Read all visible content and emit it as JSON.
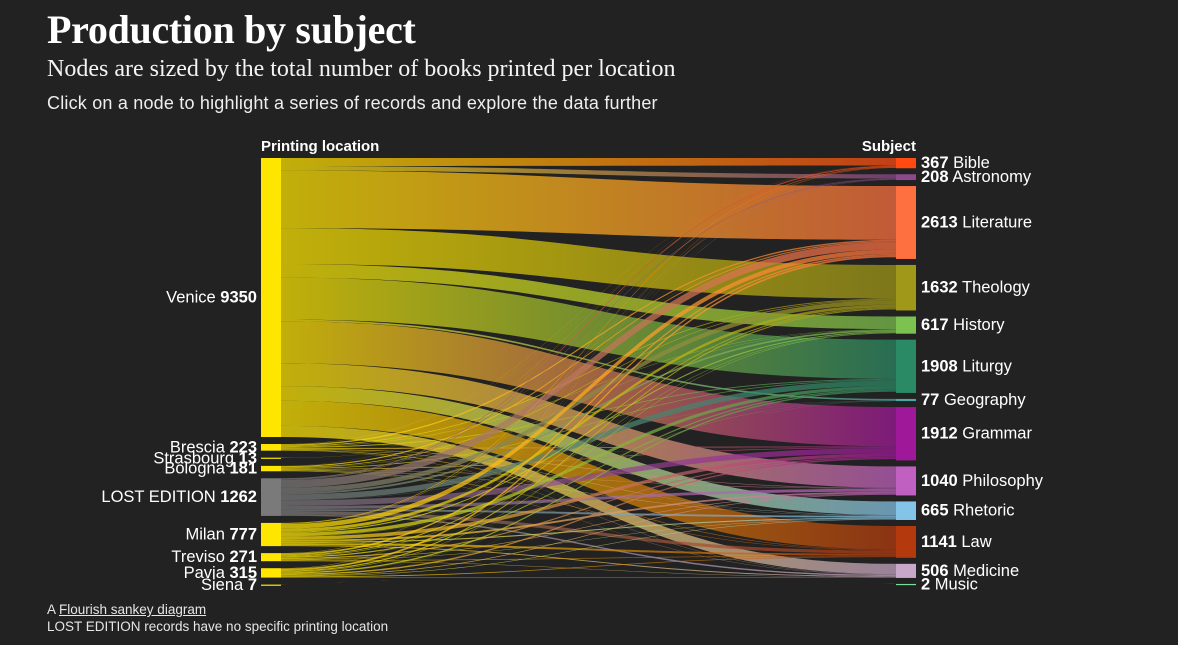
{
  "header": {
    "title": "Production by subject",
    "subtitle": "Nodes are sized by the total number of books printed per location",
    "instruction": "Click on a node to highlight a series of records and explore the data further"
  },
  "footer": {
    "prefix": "A ",
    "link_text": "Flourish sankey diagram",
    "note": "LOST EDITION records have no specific printing location"
  },
  "chart_data": {
    "type": "sankey",
    "source_header": "Printing location",
    "target_header": "Subject",
    "sources": [
      {
        "name": "Venice",
        "value": 9350,
        "color": "#ffe600"
      },
      {
        "name": "Brescia",
        "value": 223,
        "color": "#ffe600"
      },
      {
        "name": "Strasbourg",
        "value": 13,
        "color": "#ffe600"
      },
      {
        "name": "Bologna",
        "value": 181,
        "color": "#ffe600"
      },
      {
        "name": "LOST EDITION",
        "value": 1262,
        "color": "#7a7a7a"
      },
      {
        "name": "Milan",
        "value": 777,
        "color": "#ffe600"
      },
      {
        "name": "Treviso",
        "value": 271,
        "color": "#ffe600"
      },
      {
        "name": "Pavia",
        "value": 315,
        "color": "#ffe600"
      },
      {
        "name": "Siena",
        "value": 7,
        "color": "#ffe600"
      }
    ],
    "targets": [
      {
        "name": "Bible",
        "value": 367,
        "color": "#ff4b12"
      },
      {
        "name": "Astronomy",
        "value": 208,
        "color": "#8c4a8c"
      },
      {
        "name": "Literature",
        "value": 2613,
        "color": "#ff7040"
      },
      {
        "name": "Theology",
        "value": 1632,
        "color": "#a09818"
      },
      {
        "name": "History",
        "value": 617,
        "color": "#7cc250"
      },
      {
        "name": "Liturgy",
        "value": 1908,
        "color": "#2a8a66"
      },
      {
        "name": "Geography",
        "value": 77,
        "color": "#4aa8a8"
      },
      {
        "name": "Grammar",
        "value": 1912,
        "color": "#a0189a"
      },
      {
        "name": "Philosophy",
        "value": 1040,
        "color": "#c060c0"
      },
      {
        "name": "Rhetoric",
        "value": 665,
        "color": "#84c4e8"
      },
      {
        "name": "Law",
        "value": 1141,
        "color": "#b43a0e"
      },
      {
        "name": "Medicine",
        "value": 506,
        "color": "#c8a8c8"
      },
      {
        "name": "Music",
        "value": 2,
        "color": "#7cdca0"
      }
    ]
  }
}
